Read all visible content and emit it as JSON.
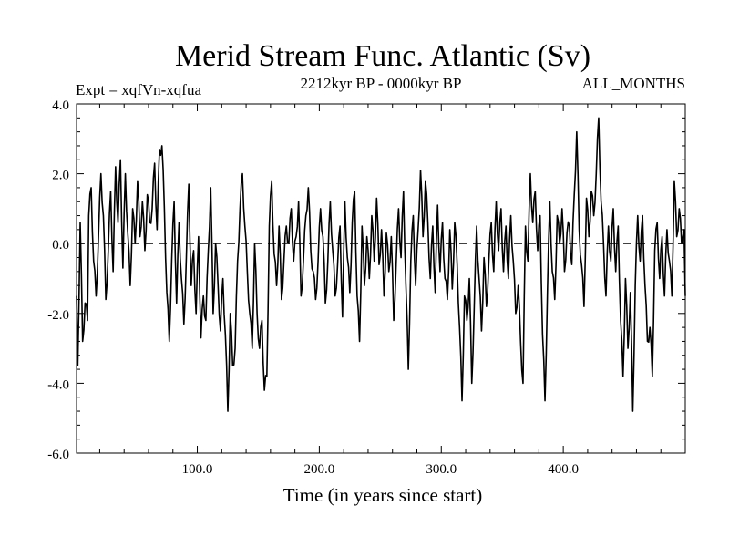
{
  "chart_data": {
    "type": "line",
    "title": "Merid Stream Func. Atlantic (Sv)",
    "subtitle_left": "Expt = xqfVn-xqfua",
    "subtitle_center": "2212kyr BP - 0000kyr BP",
    "subtitle_right": "ALL_MONTHS",
    "xlabel": "Time (in years since start)",
    "ylabel": "",
    "xlim": [
      1,
      500
    ],
    "ylim": [
      -6,
      4
    ],
    "x_ticks": [
      100,
      200,
      300,
      400
    ],
    "x_tick_labels": [
      "100.0",
      "200.0",
      "300.0",
      "400.0"
    ],
    "y_ticks": [
      -6,
      -4,
      -2,
      0,
      2,
      4
    ],
    "y_tick_labels": [
      "-6.0",
      "-4.0",
      "-2.0",
      "0.0",
      "2.0",
      "4.0"
    ],
    "reference_line": 0,
    "series": [
      {
        "name": "xqfVn-xqfua",
        "color": "#000000",
        "anchors": [
          [
            1,
            -1.5
          ],
          [
            2,
            -3.5
          ],
          [
            4,
            0.6
          ],
          [
            6,
            -2.8
          ],
          [
            8,
            -1.7
          ],
          [
            10,
            -2.2
          ],
          [
            11,
            0.8
          ],
          [
            13,
            1.6
          ],
          [
            15,
            -0.5
          ],
          [
            17,
            -1.5
          ],
          [
            19,
            0.2
          ],
          [
            21,
            2.0
          ],
          [
            23,
            0.8
          ],
          [
            25,
            -1.6
          ],
          [
            27,
            -0.2
          ],
          [
            29,
            1.5
          ],
          [
            31,
            -0.8
          ],
          [
            33,
            2.2
          ],
          [
            35,
            0.6
          ],
          [
            37,
            2.4
          ],
          [
            39,
            -0.7
          ],
          [
            41,
            2.0
          ],
          [
            43,
            0.3
          ],
          [
            45,
            -1.2
          ],
          [
            47,
            1.0
          ],
          [
            49,
            0.0
          ],
          [
            51,
            1.8
          ],
          [
            53,
            0.2
          ],
          [
            55,
            1.2
          ],
          [
            57,
            -0.2
          ],
          [
            59,
            1.4
          ],
          [
            61,
            0.6
          ],
          [
            63,
            1.0
          ],
          [
            65,
            2.3
          ],
          [
            67,
            0.4
          ],
          [
            69,
            2.7
          ],
          [
            71,
            2.8
          ],
          [
            73,
            1.0
          ],
          [
            75,
            -1.4
          ],
          [
            77,
            -2.8
          ],
          [
            79,
            -0.5
          ],
          [
            81,
            1.2
          ],
          [
            83,
            -1.7
          ],
          [
            85,
            0.6
          ],
          [
            87,
            -1.0
          ],
          [
            89,
            -2.3
          ],
          [
            91,
            -0.4
          ],
          [
            93,
            1.7
          ],
          [
            95,
            -1.2
          ],
          [
            97,
            -0.2
          ],
          [
            99,
            -2.0
          ],
          [
            101,
            0.2
          ],
          [
            103,
            -2.7
          ],
          [
            105,
            -1.5
          ],
          [
            107,
            -2.2
          ],
          [
            109,
            -0.2
          ],
          [
            111,
            1.6
          ],
          [
            113,
            -2.0
          ],
          [
            115,
            0.0
          ],
          [
            117,
            -1.2
          ],
          [
            119,
            -2.5
          ],
          [
            121,
            -1.0
          ],
          [
            123,
            -2.6
          ],
          [
            125,
            -4.8
          ],
          [
            127,
            -2.0
          ],
          [
            129,
            -3.5
          ],
          [
            131,
            -3.0
          ],
          [
            133,
            -0.5
          ],
          [
            135,
            1.0
          ],
          [
            137,
            2.0
          ],
          [
            139,
            0.5
          ],
          [
            141,
            -0.8
          ],
          [
            143,
            -2.0
          ],
          [
            145,
            -3.0
          ],
          [
            147,
            0.0
          ],
          [
            149,
            -2.0
          ],
          [
            151,
            -3.0
          ],
          [
            153,
            -2.2
          ],
          [
            155,
            -4.2
          ],
          [
            157,
            -3.8
          ],
          [
            159,
            0.5
          ],
          [
            161,
            1.8
          ],
          [
            163,
            -0.3
          ],
          [
            165,
            -1.2
          ],
          [
            167,
            0.5
          ],
          [
            169,
            -1.6
          ],
          [
            171,
            -0.5
          ],
          [
            173,
            0.5
          ],
          [
            175,
            0.0
          ],
          [
            177,
            1.0
          ],
          [
            179,
            -0.5
          ],
          [
            181,
            0.2
          ],
          [
            183,
            1.2
          ],
          [
            185,
            -1.5
          ],
          [
            187,
            -0.5
          ],
          [
            189,
            0.8
          ],
          [
            191,
            1.6
          ],
          [
            193,
            -0.2
          ],
          [
            195,
            -0.8
          ],
          [
            197,
            -1.6
          ],
          [
            199,
            -0.5
          ],
          [
            201,
            1.0
          ],
          [
            203,
            0.2
          ],
          [
            205,
            -1.7
          ],
          [
            207,
            -0.5
          ],
          [
            209,
            1.2
          ],
          [
            211,
            -0.2
          ],
          [
            213,
            -1.5
          ],
          [
            215,
            -0.6
          ],
          [
            217,
            0.5
          ],
          [
            219,
            -2.1
          ],
          [
            221,
            1.2
          ],
          [
            223,
            -0.4
          ],
          [
            225,
            -1.4
          ],
          [
            227,
            0.6
          ],
          [
            229,
            1.5
          ],
          [
            231,
            -1.5
          ],
          [
            233,
            -2.8
          ],
          [
            235,
            0.5
          ],
          [
            237,
            -1.2
          ],
          [
            239,
            0.2
          ],
          [
            241,
            -1.0
          ],
          [
            243,
            0.8
          ],
          [
            245,
            -0.5
          ],
          [
            247,
            1.3
          ],
          [
            249,
            -0.6
          ],
          [
            251,
            0.4
          ],
          [
            253,
            -1.5
          ],
          [
            255,
            0.3
          ],
          [
            257,
            -0.8
          ],
          [
            259,
            0.2
          ],
          [
            261,
            -2.2
          ],
          [
            263,
            -0.6
          ],
          [
            265,
            1.0
          ],
          [
            267,
            -0.4
          ],
          [
            269,
            1.5
          ],
          [
            271,
            -1.2
          ],
          [
            273,
            -3.6
          ],
          [
            275,
            -0.5
          ],
          [
            277,
            0.8
          ],
          [
            279,
            -1.2
          ],
          [
            281,
            0.4
          ],
          [
            283,
            2.1
          ],
          [
            285,
            0.2
          ],
          [
            287,
            1.8
          ],
          [
            289,
            0.6
          ],
          [
            291,
            -1.0
          ],
          [
            293,
            0.5
          ],
          [
            295,
            -1.4
          ],
          [
            297,
            1.1
          ],
          [
            299,
            -0.8
          ],
          [
            301,
            0.6
          ],
          [
            303,
            -1.0
          ],
          [
            305,
            -1.6
          ],
          [
            307,
            0.4
          ],
          [
            309,
            -1.3
          ],
          [
            311,
            0.6
          ],
          [
            313,
            -0.6
          ],
          [
            315,
            -2.4
          ],
          [
            317,
            -4.5
          ],
          [
            319,
            -1.5
          ],
          [
            321,
            -2.2
          ],
          [
            323,
            -1.0
          ],
          [
            325,
            -4.0
          ],
          [
            327,
            -1.8
          ],
          [
            329,
            0.5
          ],
          [
            331,
            -1.0
          ],
          [
            333,
            -2.5
          ],
          [
            335,
            -0.4
          ],
          [
            337,
            -1.8
          ],
          [
            339,
            -0.5
          ],
          [
            341,
            0.6
          ],
          [
            343,
            -0.8
          ],
          [
            345,
            1.2
          ],
          [
            347,
            -0.2
          ],
          [
            349,
            1.0
          ],
          [
            351,
            -0.8
          ],
          [
            353,
            0.5
          ],
          [
            355,
            -1.0
          ],
          [
            357,
            0.8
          ],
          [
            359,
            -0.5
          ],
          [
            361,
            -2.0
          ],
          [
            363,
            -1.2
          ],
          [
            365,
            -2.8
          ],
          [
            367,
            -4.0
          ],
          [
            369,
            0.5
          ],
          [
            371,
            -0.5
          ],
          [
            373,
            2.0
          ],
          [
            375,
            0.6
          ],
          [
            377,
            1.5
          ],
          [
            379,
            -0.2
          ],
          [
            381,
            0.8
          ],
          [
            383,
            -2.6
          ],
          [
            385,
            -4.5
          ],
          [
            387,
            -1.4
          ],
          [
            389,
            1.2
          ],
          [
            391,
            -0.8
          ],
          [
            393,
            -1.6
          ],
          [
            395,
            0.8
          ],
          [
            397,
            0.0
          ],
          [
            399,
            1.0
          ],
          [
            401,
            -0.8
          ],
          [
            403,
            0.3
          ],
          [
            405,
            0.5
          ],
          [
            407,
            -0.6
          ],
          [
            409,
            1.4
          ],
          [
            411,
            3.2
          ],
          [
            413,
            0.4
          ],
          [
            415,
            -0.6
          ],
          [
            417,
            -1.8
          ],
          [
            419,
            1.3
          ],
          [
            421,
            0.2
          ],
          [
            423,
            1.5
          ],
          [
            425,
            0.8
          ],
          [
            427,
            2.0
          ],
          [
            429,
            3.6
          ],
          [
            431,
            1.2
          ],
          [
            433,
            0.0
          ],
          [
            435,
            -1.5
          ],
          [
            437,
            0.5
          ],
          [
            439,
            -0.5
          ],
          [
            441,
            1.0
          ],
          [
            443,
            -0.8
          ],
          [
            445,
            0.5
          ],
          [
            447,
            -2.2
          ],
          [
            449,
            -3.8
          ],
          [
            451,
            -1.0
          ],
          [
            453,
            -3.0
          ],
          [
            455,
            -1.4
          ],
          [
            457,
            -4.8
          ],
          [
            459,
            -1.2
          ],
          [
            461,
            0.8
          ],
          [
            463,
            -0.5
          ],
          [
            465,
            0.8
          ],
          [
            467,
            -1.2
          ],
          [
            469,
            -2.8
          ],
          [
            471,
            -2.4
          ],
          [
            473,
            -3.8
          ],
          [
            475,
            -0.2
          ],
          [
            477,
            0.6
          ],
          [
            479,
            -1.0
          ],
          [
            481,
            0.2
          ],
          [
            483,
            -1.5
          ],
          [
            485,
            0.4
          ],
          [
            487,
            -0.5
          ],
          [
            489,
            -1.5
          ],
          [
            491,
            1.8
          ],
          [
            493,
            0.2
          ],
          [
            495,
            1.0
          ],
          [
            497,
            0.0
          ],
          [
            498,
            0.2
          ],
          [
            499,
            0.4
          ],
          [
            500,
            -1.5
          ]
        ]
      }
    ]
  }
}
